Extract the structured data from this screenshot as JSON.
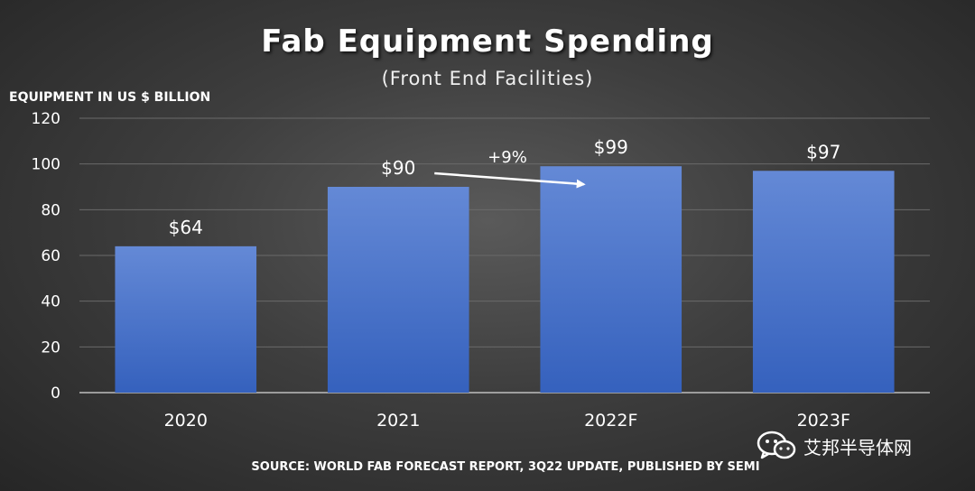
{
  "chart_data": {
    "type": "bar",
    "title": "Fab Equipment Spending",
    "subtitle": "(Front End Facilities)",
    "ylabel": "EQUIPMENT IN US $ BILLION",
    "xlabel": "",
    "categories": [
      "2020",
      "2021",
      "2022F",
      "2023F"
    ],
    "values": [
      64,
      90,
      99,
      97
    ],
    "data_labels": [
      "$64",
      "$90",
      "$99",
      "$97"
    ],
    "ylim": [
      0,
      120
    ],
    "yticks": [
      0,
      20,
      40,
      60,
      80,
      100,
      120
    ],
    "grid": true,
    "bar_color": "#4472c4",
    "annotation": {
      "text": "+9%",
      "from_category": "2021",
      "to_category": "2022F"
    }
  },
  "source": "SOURCE: WORLD FAB FORECAST REPORT, 3Q22 UPDATE, PUBLISHED BY SEMI",
  "watermark": {
    "icon": "wechat-icon",
    "text": "艾邦半导体网"
  }
}
